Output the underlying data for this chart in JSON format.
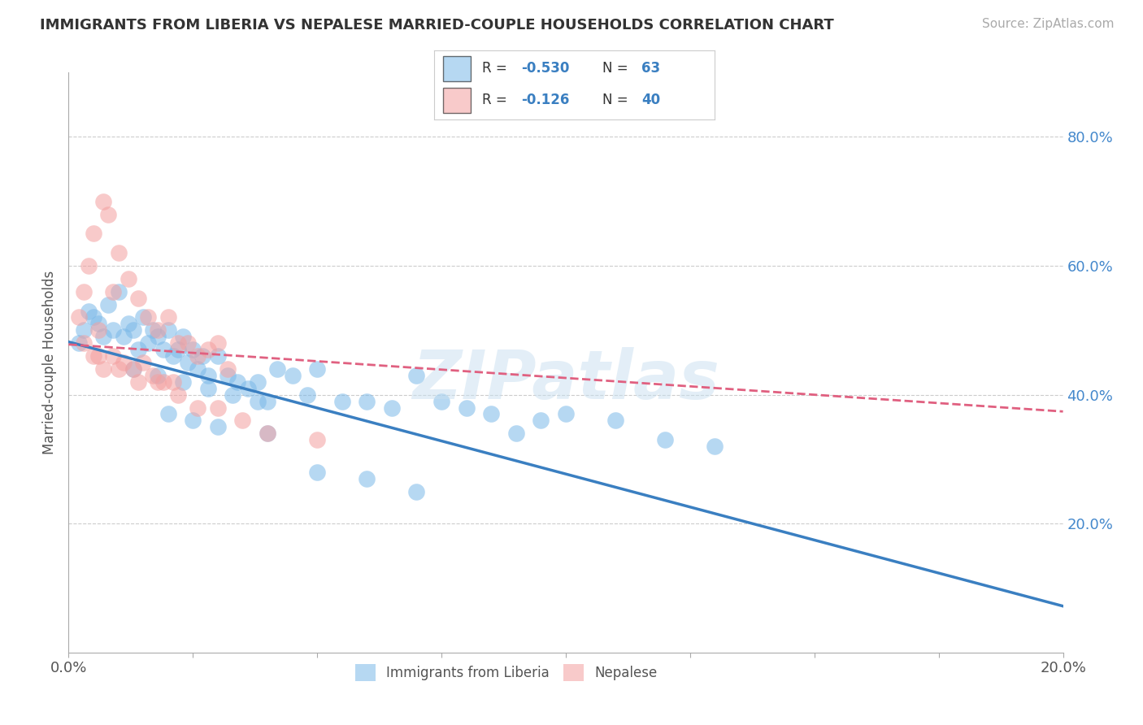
{
  "title": "IMMIGRANTS FROM LIBERIA VS NEPALESE MARRIED-COUPLE HOUSEHOLDS CORRELATION CHART",
  "source": "Source: ZipAtlas.com",
  "ylabel": "Married-couple Households",
  "xlim": [
    0.0,
    0.2
  ],
  "ylim": [
    0.0,
    0.9
  ],
  "grid_color": "#cccccc",
  "background_color": "#ffffff",
  "blue_color": "#7ab8e8",
  "pink_color": "#f4a0a0",
  "blue_line_color": "#3a7fc1",
  "pink_line_color": "#e06080",
  "watermark": "ZIPatlas",
  "blue_intercept": 0.482,
  "blue_slope": -2.05,
  "pink_intercept": 0.478,
  "pink_slope": -0.52,
  "blue_scatter_x": [
    0.002,
    0.003,
    0.004,
    0.005,
    0.006,
    0.007,
    0.008,
    0.009,
    0.01,
    0.011,
    0.012,
    0.013,
    0.014,
    0.015,
    0.016,
    0.017,
    0.018,
    0.019,
    0.02,
    0.021,
    0.022,
    0.023,
    0.024,
    0.025,
    0.026,
    0.027,
    0.028,
    0.03,
    0.032,
    0.034,
    0.036,
    0.038,
    0.04,
    0.042,
    0.045,
    0.048,
    0.05,
    0.055,
    0.06,
    0.065,
    0.07,
    0.075,
    0.08,
    0.085,
    0.09,
    0.095,
    0.1,
    0.11,
    0.12,
    0.13,
    0.013,
    0.018,
    0.023,
    0.028,
    0.033,
    0.038,
    0.02,
    0.025,
    0.03,
    0.04,
    0.05,
    0.06,
    0.07
  ],
  "blue_scatter_y": [
    0.48,
    0.5,
    0.53,
    0.52,
    0.51,
    0.49,
    0.54,
    0.5,
    0.56,
    0.49,
    0.51,
    0.5,
    0.47,
    0.52,
    0.48,
    0.5,
    0.49,
    0.47,
    0.5,
    0.46,
    0.47,
    0.49,
    0.45,
    0.47,
    0.44,
    0.46,
    0.43,
    0.46,
    0.43,
    0.42,
    0.41,
    0.42,
    0.39,
    0.44,
    0.43,
    0.4,
    0.44,
    0.39,
    0.39,
    0.38,
    0.43,
    0.39,
    0.38,
    0.37,
    0.34,
    0.36,
    0.37,
    0.36,
    0.33,
    0.32,
    0.44,
    0.43,
    0.42,
    0.41,
    0.4,
    0.39,
    0.37,
    0.36,
    0.35,
    0.34,
    0.28,
    0.27,
    0.25
  ],
  "pink_scatter_x": [
    0.002,
    0.003,
    0.004,
    0.005,
    0.006,
    0.007,
    0.008,
    0.009,
    0.01,
    0.012,
    0.014,
    0.016,
    0.018,
    0.02,
    0.022,
    0.024,
    0.026,
    0.028,
    0.03,
    0.032,
    0.003,
    0.005,
    0.007,
    0.009,
    0.011,
    0.013,
    0.015,
    0.017,
    0.019,
    0.021,
    0.006,
    0.01,
    0.014,
    0.018,
    0.022,
    0.026,
    0.03,
    0.035,
    0.04,
    0.05
  ],
  "pink_scatter_y": [
    0.52,
    0.56,
    0.6,
    0.65,
    0.5,
    0.7,
    0.68,
    0.56,
    0.62,
    0.58,
    0.55,
    0.52,
    0.5,
    0.52,
    0.48,
    0.48,
    0.46,
    0.47,
    0.48,
    0.44,
    0.48,
    0.46,
    0.44,
    0.46,
    0.45,
    0.44,
    0.45,
    0.43,
    0.42,
    0.42,
    0.46,
    0.44,
    0.42,
    0.42,
    0.4,
    0.38,
    0.38,
    0.36,
    0.34,
    0.33
  ]
}
